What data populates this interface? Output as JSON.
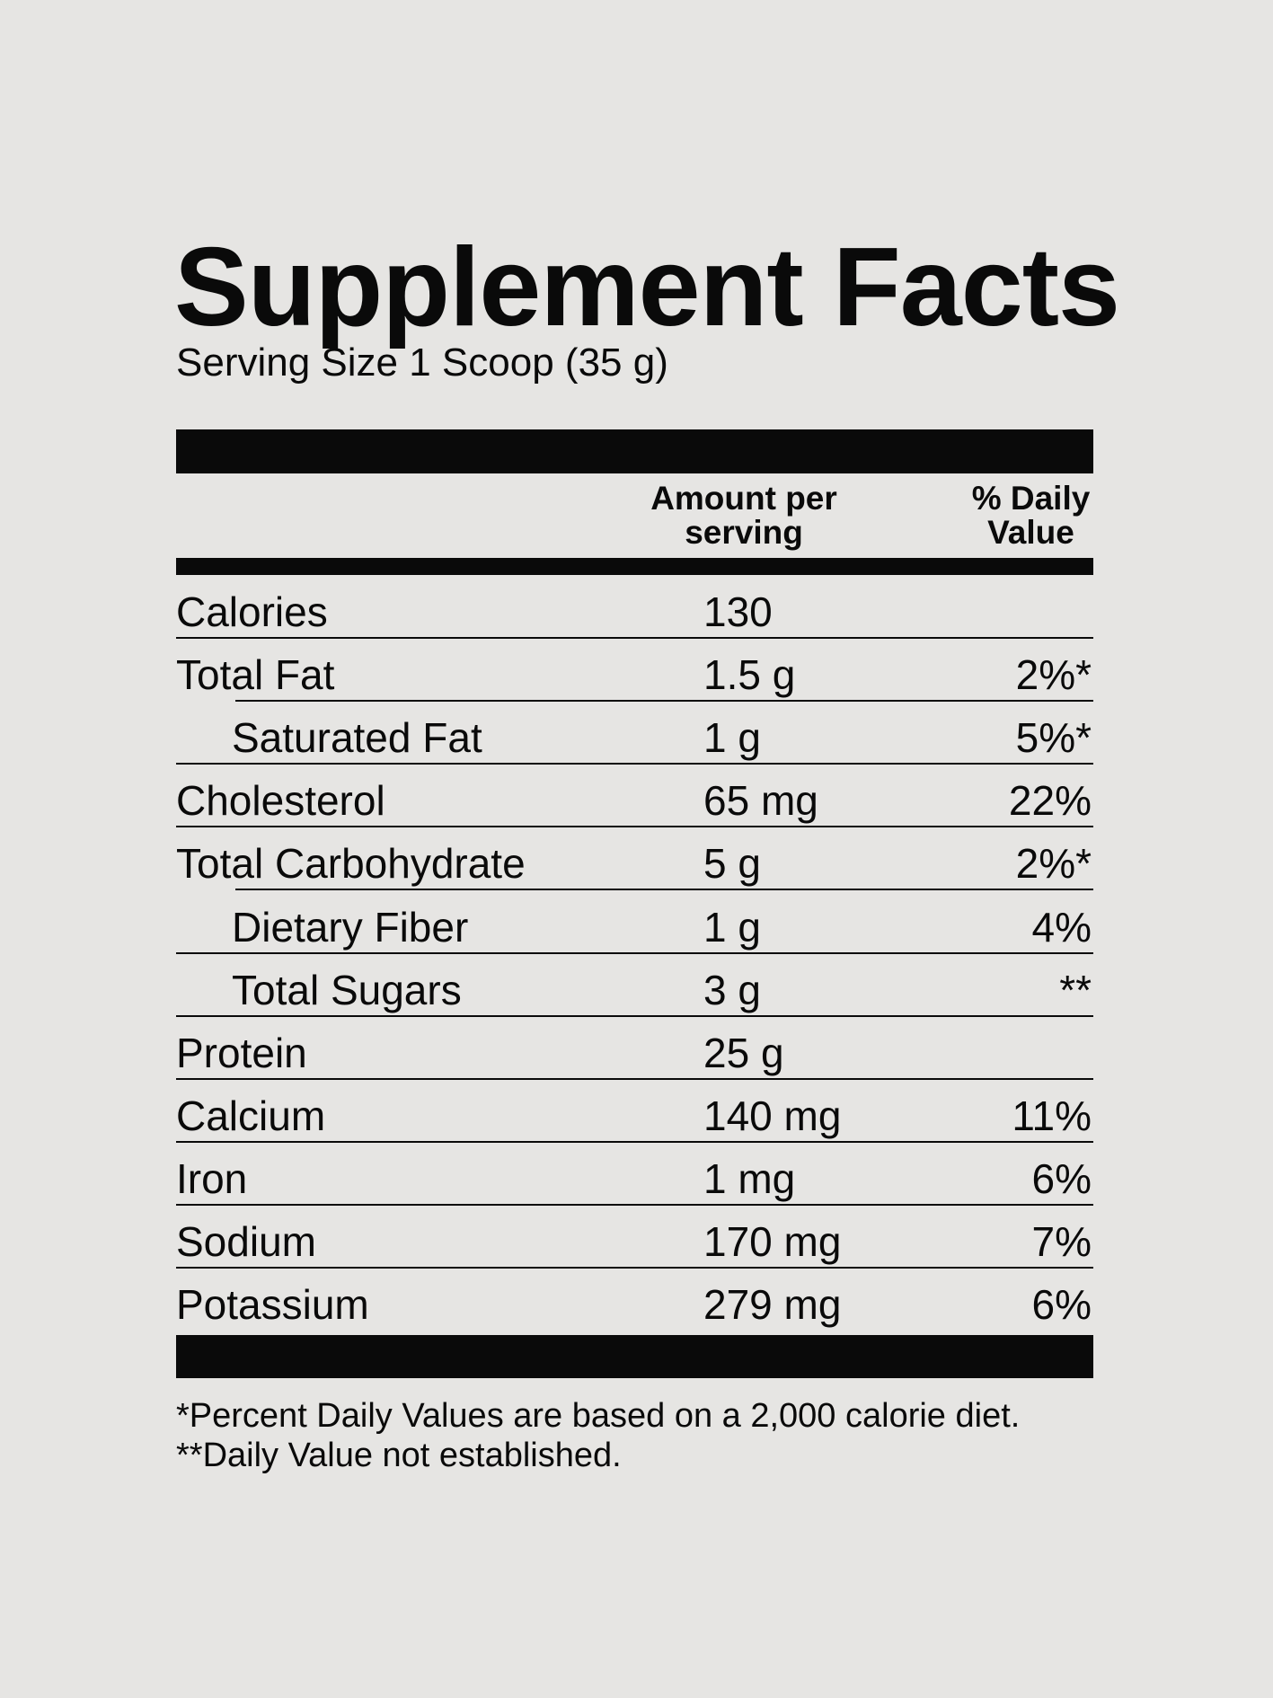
{
  "title": "Supplement Facts",
  "serving_size": "Serving Size 1 Scoop (35 g)",
  "header": {
    "amount": "Amount per serving",
    "daily_value": "% Daily Value"
  },
  "rows": [
    {
      "label": "Calories",
      "amount": "130"
    },
    {
      "label": "Total Fat",
      "amount": "1.5 g",
      "dv": "2%*"
    },
    {
      "label": "Saturated Fat",
      "amount": "1 g",
      "dv": "5%*",
      "indent": true
    },
    {
      "label": "Cholesterol",
      "amount": "65 mg",
      "dv": "22%"
    },
    {
      "label": "Total Carbohydrate",
      "amount": "5 g",
      "dv": "2%*"
    },
    {
      "label": "Dietary Fiber",
      "amount": "1 g",
      "dv": "4%",
      "indent": true
    },
    {
      "label": "Total Sugars",
      "amount": "3 g",
      "dv": "**",
      "indent": true
    },
    {
      "label": "Protein",
      "amount": "25 g"
    },
    {
      "label": "Calcium",
      "amount": "140 mg",
      "dv": "11%"
    },
    {
      "label": "Iron",
      "amount": "1 mg",
      "dv": "6%"
    },
    {
      "label": "Sodium",
      "amount": "170 mg",
      "dv": "7%"
    },
    {
      "label": "Potassium",
      "amount": "279 mg",
      "dv": "6%"
    }
  ],
  "footnotes": [
    "*Percent Daily Values are based on a 2,000 calorie diet.",
    "**Daily Value not established."
  ]
}
